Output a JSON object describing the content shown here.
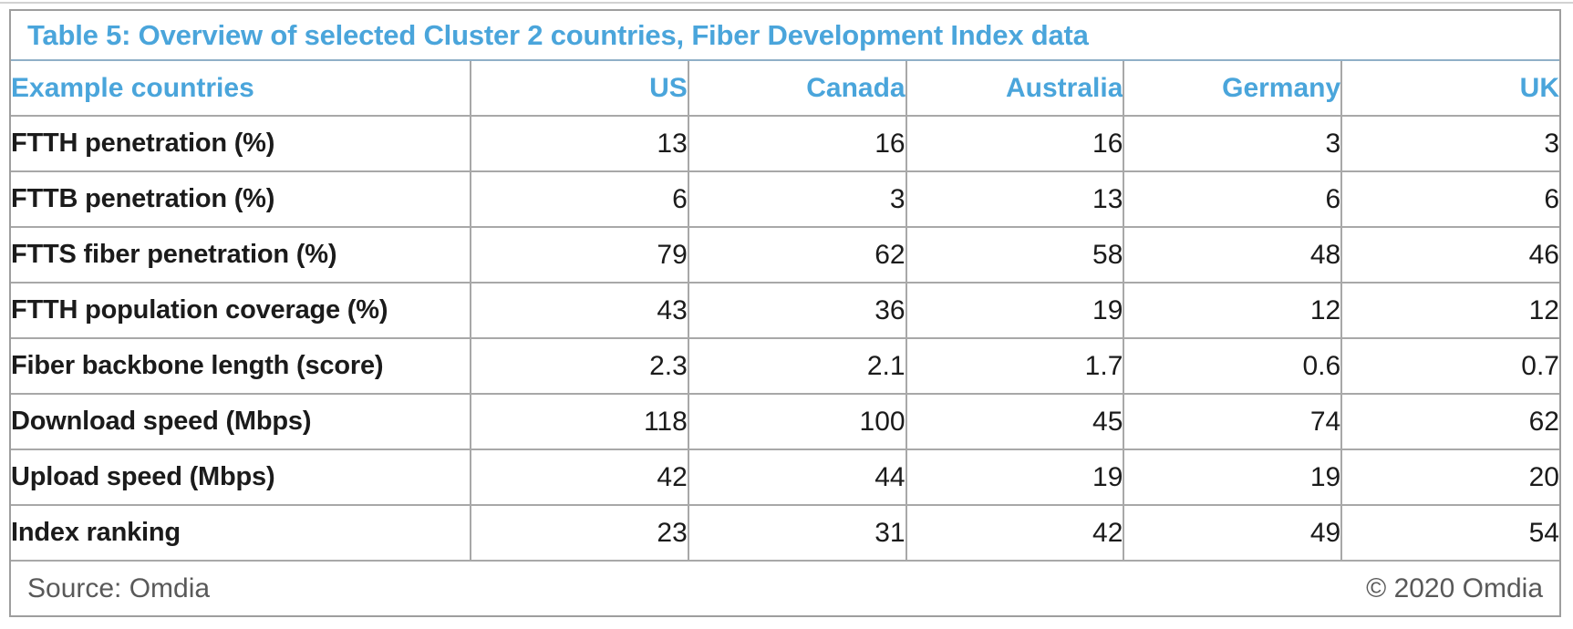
{
  "chart_data": {
    "type": "table",
    "title": "Table 5: Overview of selected Cluster 2 countries, Fiber Development Index data",
    "corner_label": "Example countries",
    "columns": [
      "US",
      "Canada",
      "Australia",
      "Germany",
      "UK"
    ],
    "rows": [
      {
        "metric": "FTTH penetration (%)",
        "values": [
          13,
          16,
          16,
          3,
          3
        ]
      },
      {
        "metric": "FTTB penetration (%)",
        "values": [
          6,
          3,
          13,
          6,
          6
        ]
      },
      {
        "metric": "FTTS fiber penetration (%)",
        "values": [
          79,
          62,
          58,
          48,
          46
        ]
      },
      {
        "metric": "FTTH population coverage (%)",
        "values": [
          43,
          36,
          19,
          12,
          12
        ]
      },
      {
        "metric": "Fiber backbone length (score)",
        "values": [
          2.3,
          2.1,
          1.7,
          0.6,
          0.7
        ]
      },
      {
        "metric": "Download speed (Mbps)",
        "values": [
          118,
          100,
          45,
          74,
          62
        ]
      },
      {
        "metric": "Upload speed (Mbps)",
        "values": [
          42,
          44,
          19,
          19,
          20
        ]
      },
      {
        "metric": "Index ranking",
        "values": [
          23,
          31,
          42,
          49,
          54
        ]
      }
    ]
  },
  "footer": {
    "source": "Source: Omdia",
    "copyright": "© 2020 Omdia"
  },
  "colors": {
    "accent_blue": "#4AA5DB",
    "title_divider": "#90AFC7",
    "grid_gray": "#A8A8A8",
    "text_dark": "#1B1B1B",
    "muted_gray": "#595959"
  }
}
